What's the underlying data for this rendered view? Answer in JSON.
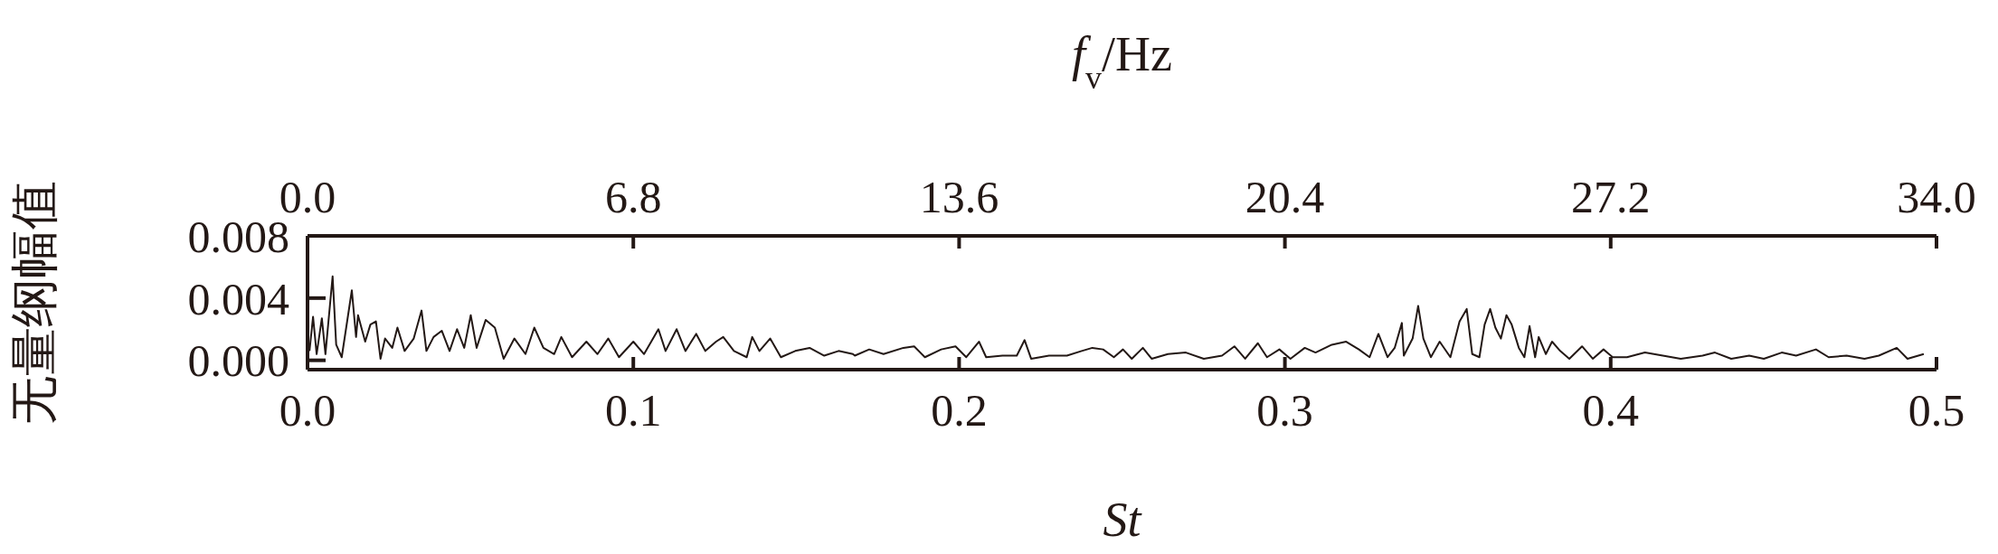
{
  "chart_data": {
    "type": "line",
    "xlabel": "St",
    "x2label": "f$_{v}$/Hz",
    "ylabel": "无量纲幅值",
    "x": [
      0.0006,
      0.0017,
      0.0028,
      0.0044,
      0.0055,
      0.0077,
      0.0088,
      0.0105,
      0.0136,
      0.0149,
      0.0155,
      0.0177,
      0.0193,
      0.021,
      0.0224,
      0.0238,
      0.026,
      0.0276,
      0.0298,
      0.0326,
      0.035,
      0.0365,
      0.0387,
      0.0412,
      0.0436,
      0.0459,
      0.0481,
      0.0501,
      0.0519,
      0.0547,
      0.0575,
      0.0602,
      0.0635,
      0.0669,
      0.0696,
      0.0724,
      0.0757,
      0.0779,
      0.0812,
      0.0856,
      0.089,
      0.0923,
      0.0956,
      0.1,
      0.1033,
      0.1077,
      0.1099,
      0.1133,
      0.116,
      0.1193,
      0.1221,
      0.1254,
      0.1276,
      0.1309,
      0.1348,
      0.1365,
      0.1387,
      0.142,
      0.1453,
      0.1497,
      0.1541,
      0.1586,
      0.163,
      0.1674,
      0.168,
      0.1724,
      0.1768,
      0.1829,
      0.1862,
      0.1895,
      0.1945,
      0.1989,
      0.2022,
      0.2061,
      0.2083,
      0.2133,
      0.2177,
      0.2201,
      0.2221,
      0.2276,
      0.2331,
      0.2376,
      0.2409,
      0.2442,
      0.2475,
      0.2503,
      0.253,
      0.2564,
      0.2591,
      0.2641,
      0.2696,
      0.2751,
      0.2807,
      0.2845,
      0.2878,
      0.2917,
      0.2945,
      0.2983,
      0.3017,
      0.3061,
      0.3094,
      0.3144,
      0.3188,
      0.3227,
      0.326,
      0.3287,
      0.3315,
      0.3337,
      0.3359,
      0.3365,
      0.3392,
      0.3409,
      0.3425,
      0.3448,
      0.3475,
      0.3508,
      0.3536,
      0.3558,
      0.3575,
      0.3597,
      0.3613,
      0.363,
      0.3646,
      0.3663,
      0.368,
      0.3696,
      0.3718,
      0.3735,
      0.3751,
      0.3768,
      0.3779,
      0.3801,
      0.382,
      0.3845,
      0.3873,
      0.3912,
      0.3945,
      0.3978,
      0.4006,
      0.405,
      0.4105,
      0.416,
      0.4215,
      0.4282,
      0.432,
      0.437,
      0.4425,
      0.447,
      0.4525,
      0.4569,
      0.463,
      0.4669,
      0.4724,
      0.4779,
      0.4823,
      0.4878,
      0.4911,
      0.4961
    ],
    "series": [
      {
        "color": "#231815",
        "values": [
          0.0006,
          0.0028,
          0.0004,
          0.0027,
          0.0004,
          0.0054,
          0.001,
          0.0002,
          0.0045,
          0.0015,
          0.0029,
          0.0012,
          0.0023,
          0.0025,
          0.0001,
          0.0014,
          0.0008,
          0.0021,
          0.0006,
          0.0014,
          0.0032,
          0.0006,
          0.0015,
          0.0019,
          0.0006,
          0.002,
          0.0008,
          0.0029,
          0.0008,
          0.0026,
          0.0021,
          0.0001,
          0.0014,
          0.0004,
          0.0021,
          0.0008,
          0.0004,
          0.0015,
          0.0002,
          0.0012,
          0.0004,
          0.0014,
          0.0002,
          0.0012,
          0.0004,
          0.002,
          0.0006,
          0.002,
          0.0006,
          0.0017,
          0.0006,
          0.0012,
          0.0015,
          0.0006,
          0.0002,
          0.0015,
          0.0006,
          0.0014,
          0.0002,
          0.0006,
          0.0008,
          0.0003,
          0.0006,
          0.0004,
          0.0003,
          0.0007,
          0.0004,
          0.0008,
          0.0009,
          0.0002,
          0.0007,
          0.0009,
          0.0002,
          0.0012,
          0.0002,
          0.0003,
          0.0003,
          0.0013,
          0.0001,
          0.0003,
          0.0003,
          0.0006,
          0.0008,
          0.0007,
          0.0002,
          0.0007,
          0.0001,
          0.0008,
          0.0001,
          0.0004,
          0.0005,
          0.0001,
          0.0003,
          0.0009,
          0.0001,
          0.0011,
          0.0002,
          0.0007,
          0.0001,
          0.0008,
          0.0005,
          0.001,
          0.0012,
          0.0007,
          0.0002,
          0.0017,
          0.0002,
          0.0008,
          0.0024,
          0.0003,
          0.0014,
          0.0035,
          0.0014,
          0.0002,
          0.0012,
          0.0002,
          0.0025,
          0.0033,
          0.0004,
          0.0002,
          0.0023,
          0.0033,
          0.0021,
          0.0014,
          0.0029,
          0.0023,
          0.0008,
          0.0002,
          0.0022,
          0.0002,
          0.0015,
          0.0004,
          0.0012,
          0.0006,
          0.0001,
          0.0009,
          0.0001,
          0.0007,
          0.0002,
          0.0002,
          0.0005,
          0.0003,
          0.0001,
          0.0003,
          0.0005,
          0.0001,
          0.0003,
          0.0001,
          0.0005,
          0.0003,
          0.0007,
          0.0002,
          0.0003,
          0.0001,
          0.0003,
          0.0008,
          0.0001,
          0.0004
        ]
      }
    ],
    "xlim": [
      0,
      0.5
    ],
    "xticks": [
      {
        "value": 0,
        "label": "0.0"
      },
      0.1,
      0.2,
      0.3,
      0.4,
      0.5
    ],
    "x2lim": [
      0,
      34
    ],
    "x2ticks": [
      {
        "value": 0,
        "label": "0.0"
      },
      6.8,
      13.6,
      20.4,
      27.2,
      {
        "value": 34,
        "label": "34.0"
      }
    ],
    "ylim": [
      -0.0006,
      0.008
    ],
    "yticks": [
      {
        "value": 0,
        "label": "0.000"
      },
      {
        "value": 0.004,
        "label": "0.004"
      },
      {
        "value": 0.008,
        "label": "0.008"
      }
    ],
    "grid": false,
    "legend": false,
    "marker": "none",
    "line_style": "solid"
  }
}
